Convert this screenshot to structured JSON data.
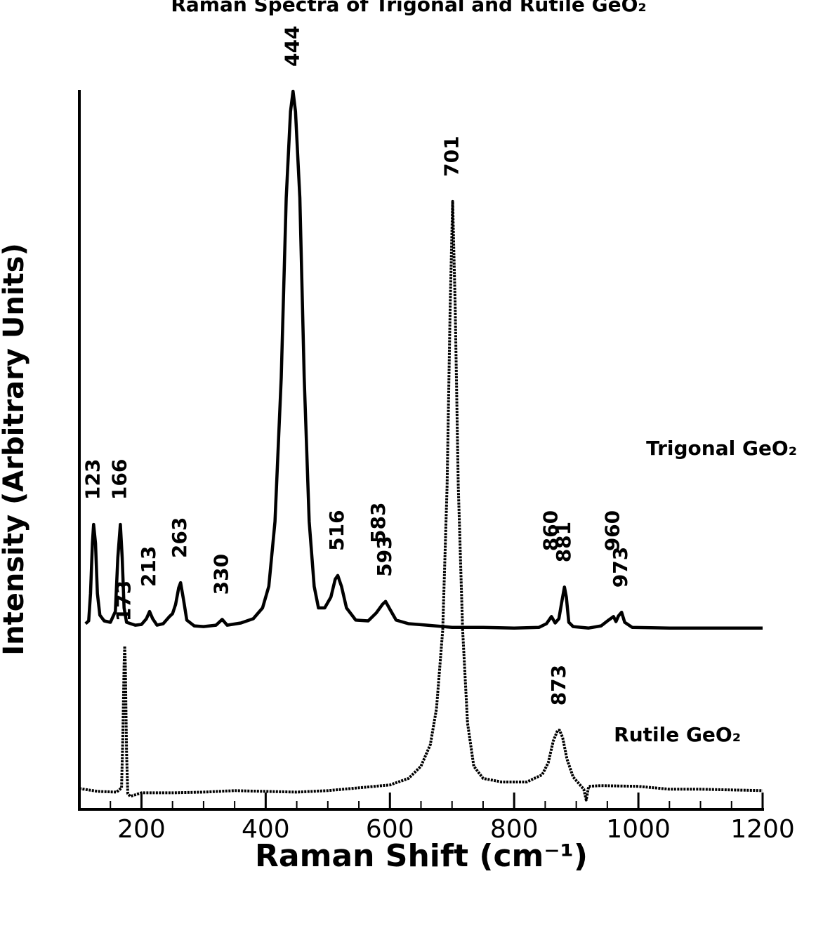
{
  "chart_data": {
    "type": "line",
    "title": "Raman Spectra of Trigonal and Rutile GeO₂",
    "xlabel": "Raman Shift (cm⁻¹)",
    "ylabel": "Intensity (Arbitrary Units)",
    "xlim": [
      100,
      1200
    ],
    "xticks": [
      200,
      400,
      600,
      800,
      1000,
      1200
    ],
    "xminorticks": [
      150,
      250,
      300,
      350,
      450,
      500,
      550,
      650,
      700,
      750,
      850,
      900,
      950,
      1050,
      1100,
      1150
    ],
    "ylim": [
      0,
      100
    ],
    "series": [
      {
        "name": "Trigonal GeO₂",
        "color": "#000000",
        "style": "solid",
        "x": [
          110,
          115,
          118,
          121,
          123,
          126,
          129,
          133,
          140,
          150,
          158,
          162,
          166,
          169,
          172,
          176,
          190,
          200,
          208,
          213,
          218,
          225,
          235,
          245,
          250,
          255,
          260,
          263,
          268,
          273,
          285,
          300,
          320,
          330,
          338,
          360,
          380,
          395,
          405,
          415,
          425,
          433,
          440,
          444,
          448,
          455,
          462,
          470,
          478,
          485,
          495,
          505,
          512,
          516,
          522,
          530,
          545,
          565,
          578,
          588,
          593,
          600,
          610,
          630,
          660,
          700,
          750,
          800,
          840,
          852,
          860,
          866,
          872,
          877,
          881,
          884,
          888,
          895,
          920,
          940,
          952,
          960,
          964,
          968,
          973,
          978,
          990,
          1050,
          1100,
          1150,
          1200
        ],
        "values": [
          25.8,
          26.2,
          30,
          37,
          39.6,
          37,
          30,
          27,
          26.2,
          26,
          27.5,
          35,
          39.6,
          35,
          28,
          26,
          25.6,
          25.7,
          26.5,
          27.5,
          26.5,
          25.6,
          25.8,
          26.8,
          27.2,
          28.5,
          30.8,
          31.5,
          29,
          26.3,
          25.5,
          25.4,
          25.6,
          26.4,
          25.6,
          25.9,
          26.5,
          28,
          31,
          40,
          60,
          85,
          97,
          99.8,
          97,
          85,
          60,
          40,
          31,
          28,
          28,
          29.5,
          32,
          32.5,
          31,
          28,
          26.3,
          26.2,
          27.3,
          28.5,
          28.9,
          27.8,
          26.3,
          25.8,
          25.6,
          25.3,
          25.3,
          25.2,
          25.3,
          25.8,
          26.8,
          25.9,
          26.5,
          29,
          30.9,
          29.5,
          26,
          25.4,
          25.2,
          25.5,
          26.3,
          26.8,
          26.1,
          26.9,
          27.4,
          26,
          25.3,
          25.2,
          25.2,
          25.2,
          25.2
        ],
        "peaks": [
          123,
          166,
          213,
          263,
          330,
          444,
          516,
          583,
          593,
          860,
          881,
          960,
          973
        ]
      },
      {
        "name": "Rutile GeO₂",
        "color": "#000000",
        "style": "dotted",
        "x": [
          100,
          130,
          160,
          168,
          170,
          172,
          173,
          174,
          176,
          178,
          182,
          200,
          250,
          300,
          350,
          400,
          450,
          500,
          550,
          600,
          630,
          650,
          665,
          675,
          685,
          692,
          697,
          701,
          705,
          710,
          717,
          725,
          735,
          750,
          780,
          820,
          845,
          855,
          863,
          870,
          873,
          878,
          885,
          895,
          905,
          912,
          916,
          920,
          940,
          1000,
          1050,
          1100,
          1150,
          1200
        ],
        "values": [
          2.9,
          2.5,
          2.4,
          3,
          10,
          20,
          22.7,
          20,
          8,
          2.2,
          1.8,
          2.3,
          2.3,
          2.4,
          2.6,
          2.5,
          2.4,
          2.6,
          3,
          3.4,
          4.3,
          6,
          9,
          14,
          25,
          45,
          70,
          84.5,
          70,
          45,
          25,
          12,
          6,
          4.3,
          3.8,
          3.8,
          4.8,
          6.5,
          9.5,
          11,
          11,
          10,
          7,
          4.5,
          3.5,
          2.8,
          1.3,
          3.2,
          3.3,
          3.2,
          2.8,
          2.8,
          2.7,
          2.6
        ],
        "peaks": [
          173,
          701,
          873
        ]
      }
    ]
  }
}
